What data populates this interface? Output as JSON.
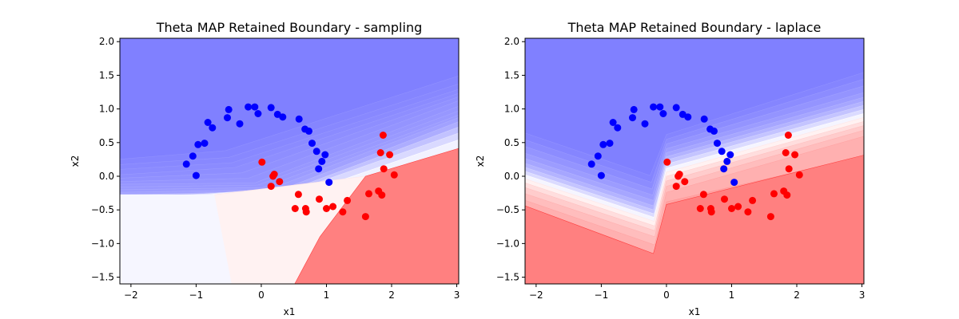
{
  "chart_data": [
    {
      "type": "scatter",
      "title": "Theta MAP Retained Boundary - sampling",
      "xlabel": "x1",
      "ylabel": "x2",
      "xlim": [
        -2.17,
        3.03
      ],
      "ylim": [
        -1.6,
        2.05
      ],
      "xticks": [
        -2,
        -1,
        0,
        1,
        2,
        3
      ],
      "yticks": [
        -1.5,
        -1.0,
        -0.5,
        0.0,
        0.5,
        1.0,
        1.5,
        2.0
      ],
      "xtick_labels": [
        "−2",
        "−1",
        "0",
        "1",
        "2",
        "3"
      ],
      "ytick_labels": [
        "−1.5",
        "−1.0",
        "−0.5",
        "0.0",
        "0.5",
        "1.0",
        "1.5",
        "2.0"
      ],
      "background": "filled contour of class probability (blue = class 0, red = class 1)",
      "contour_bands": [
        {
          "z": 0.02,
          "left": 0.25,
          "mid_x": -0.55,
          "mid_y": 0.38,
          "right": 1.5
        },
        {
          "z": 0.035,
          "left": 0.17,
          "mid_x": -0.5,
          "mid_y": 0.28,
          "right": 1.38
        },
        {
          "z": 0.047,
          "left": 0.1,
          "mid_x": -0.45,
          "mid_y": 0.2,
          "right": 1.3
        },
        {
          "z": 0.058,
          "left": 0.02,
          "mid_x": -0.4,
          "mid_y": 0.13,
          "right": 1.24
        },
        {
          "z": 0.069,
          "left": -0.03,
          "mid_x": -0.3,
          "mid_y": 0.05,
          "right": 1.19
        },
        {
          "z": 0.08,
          "left": -0.08,
          "mid_x": -0.2,
          "mid_y": -0.03,
          "right": 1.13
        },
        {
          "z": 0.092,
          "left": -0.12,
          "mid_x": -0.1,
          "mid_y": -0.1,
          "right": 1.05
        },
        {
          "z": 0.1,
          "left": -0.16,
          "mid_x": -0.05,
          "mid_y": -0.13,
          "right": 0.98
        },
        {
          "z": 0.112,
          "left": -0.2,
          "mid_x": 0.02,
          "mid_y": -0.17,
          "right": 0.92
        },
        {
          "z": 0.13,
          "left": -0.24,
          "mid_x": 0.1,
          "mid_y": -0.2,
          "right": 0.88
        },
        {
          "z": 0.18,
          "left": -0.28,
          "mid_x": 0.25,
          "mid_y": -0.22,
          "right": 0.82
        },
        {
          "z": 0.26,
          "left": -0.32,
          "mid_x": 0.45,
          "mid_y": -0.2,
          "right": 0.74
        },
        {
          "z": 0.35,
          "left": -0.36,
          "mid_x": 0.7,
          "mid_y": -0.15,
          "right": 0.65
        },
        {
          "z": 0.45,
          "left": -0.4,
          "mid_x": 1.1,
          "mid_y": -0.1,
          "right": 0.55
        },
        {
          "z": 0.55,
          "left": -0.45,
          "mid_x": 1.6,
          "mid_y": 0.0,
          "right": 0.4
        }
      ],
      "series": [
        {
          "color": "#0000ff",
          "points": [
            [
              -1.15,
              0.18
            ],
            [
              -1.05,
              0.3
            ],
            [
              -1.0,
              0.01
            ],
            [
              -0.97,
              0.47
            ],
            [
              -0.87,
              0.49
            ],
            [
              -0.82,
              0.8
            ],
            [
              -0.75,
              0.72
            ],
            [
              -0.52,
              0.87
            ],
            [
              -0.5,
              0.99
            ],
            [
              -0.33,
              0.78
            ],
            [
              -0.2,
              1.03
            ],
            [
              -0.1,
              1.03
            ],
            [
              -0.05,
              0.93
            ],
            [
              0.15,
              1.02
            ],
            [
              0.25,
              0.92
            ],
            [
              0.33,
              0.88
            ],
            [
              0.58,
              0.85
            ],
            [
              0.67,
              0.7
            ],
            [
              0.73,
              0.67
            ],
            [
              0.78,
              0.49
            ],
            [
              0.85,
              0.37
            ],
            [
              0.88,
              0.11
            ],
            [
              0.93,
              0.22
            ],
            [
              0.98,
              0.32
            ],
            [
              1.04,
              -0.09
            ]
          ]
        },
        {
          "color": "#ff0000",
          "points": [
            [
              0.01,
              0.21
            ],
            [
              0.15,
              -0.15
            ],
            [
              0.18,
              0.0
            ],
            [
              0.2,
              0.03
            ],
            [
              0.28,
              -0.08
            ],
            [
              0.52,
              -0.48
            ],
            [
              0.57,
              -0.27
            ],
            [
              0.68,
              -0.48
            ],
            [
              0.69,
              -0.53
            ],
            [
              0.89,
              -0.34
            ],
            [
              1.0,
              -0.48
            ],
            [
              1.1,
              -0.45
            ],
            [
              1.25,
              -0.53
            ],
            [
              1.32,
              -0.36
            ],
            [
              1.6,
              -0.6
            ],
            [
              1.65,
              -0.26
            ],
            [
              1.8,
              -0.22
            ],
            [
              1.83,
              0.35
            ],
            [
              1.85,
              -0.28
            ],
            [
              1.87,
              0.61
            ],
            [
              1.88,
              0.11
            ],
            [
              1.97,
              0.32
            ],
            [
              2.04,
              0.02
            ]
          ]
        }
      ]
    },
    {
      "type": "scatter",
      "title": "Theta MAP Retained Boundary - laplace",
      "xlabel": "x1",
      "ylabel": "x2",
      "xlim": [
        -2.17,
        3.03
      ],
      "ylim": [
        -1.6,
        2.05
      ],
      "xticks": [
        -2,
        -1,
        0,
        1,
        2,
        3
      ],
      "yticks": [
        -1.5,
        -1.0,
        -0.5,
        0.0,
        0.5,
        1.0,
        1.5,
        2.0
      ],
      "xtick_labels": [
        "−2",
        "−1",
        "0",
        "1",
        "2",
        "3"
      ],
      "ytick_labels": [
        "−1.5",
        "−1.0",
        "−0.5",
        "0.0",
        "0.5",
        "1.0",
        "1.5",
        "2.0"
      ],
      "background": "filled contour of class probability (blue = class 0, red = class 1)",
      "contour_bands": [
        {
          "z": 0.02,
          "left": 0.65,
          "vx": -0.25,
          "vy": 0.01,
          "kx": 0.0,
          "ky": 0.62,
          "right": 1.55
        },
        {
          "z": 0.05,
          "left": 0.55,
          "vx": -0.23,
          "vy": -0.09,
          "kx": 0.0,
          "ky": 0.55,
          "right": 1.45
        },
        {
          "z": 0.08,
          "left": 0.45,
          "vx": -0.22,
          "vy": -0.19,
          "kx": 0.0,
          "ky": 0.48,
          "right": 1.35
        },
        {
          "z": 0.11,
          "left": 0.35,
          "vx": -0.21,
          "vy": -0.28,
          "kx": 0.0,
          "ky": 0.41,
          "right": 1.25
        },
        {
          "z": 0.15,
          "left": 0.27,
          "vx": -0.2,
          "vy": -0.36,
          "kx": 0.0,
          "ky": 0.35,
          "right": 1.18
        },
        {
          "z": 0.2,
          "left": 0.2,
          "vx": -0.2,
          "vy": -0.44,
          "kx": 0.0,
          "ky": 0.29,
          "right": 1.12
        },
        {
          "z": 0.27,
          "left": 0.14,
          "vx": -0.2,
          "vy": -0.5,
          "kx": 0.0,
          "ky": 0.24,
          "right": 1.06
        },
        {
          "z": 0.36,
          "left": 0.08,
          "vx": -0.19,
          "vy": -0.56,
          "kx": 0.0,
          "ky": 0.18,
          "right": 1.0
        },
        {
          "z": 0.46,
          "left": 0.03,
          "vx": -0.19,
          "vy": -0.61,
          "kx": 0.0,
          "ky": 0.12,
          "right": 0.94
        },
        {
          "z": 0.55,
          "left": -0.03,
          "vx": -0.19,
          "vy": -0.67,
          "kx": 0.0,
          "ky": 0.06,
          "right": 0.88
        },
        {
          "z": 0.63,
          "left": -0.09,
          "vx": -0.18,
          "vy": -0.74,
          "kx": 0.0,
          "ky": 0.0,
          "right": 0.82
        },
        {
          "z": 0.7,
          "left": -0.16,
          "vx": -0.18,
          "vy": -0.81,
          "kx": 0.0,
          "ky": -0.07,
          "right": 0.76
        },
        {
          "z": 0.76,
          "left": -0.25,
          "vx": -0.18,
          "vy": -0.9,
          "kx": 0.0,
          "ky": -0.15,
          "right": 0.69
        },
        {
          "z": 0.81,
          "left": -0.35,
          "vx": -0.18,
          "vy": -1.02,
          "kx": 0.0,
          "ky": -0.24,
          "right": 0.6
        },
        {
          "z": 0.86,
          "left": -0.45,
          "vx": -0.17,
          "vy": -1.17,
          "kx": 0.0,
          "ky": -0.38,
          "right": 0.3
        }
      ],
      "series": [
        {
          "color": "#0000ff",
          "points": [
            [
              -1.15,
              0.18
            ],
            [
              -1.05,
              0.3
            ],
            [
              -1.0,
              0.01
            ],
            [
              -0.97,
              0.47
            ],
            [
              -0.87,
              0.49
            ],
            [
              -0.82,
              0.8
            ],
            [
              -0.75,
              0.72
            ],
            [
              -0.52,
              0.87
            ],
            [
              -0.5,
              0.99
            ],
            [
              -0.33,
              0.78
            ],
            [
              -0.2,
              1.03
            ],
            [
              -0.1,
              1.03
            ],
            [
              -0.05,
              0.93
            ],
            [
              0.15,
              1.02
            ],
            [
              0.25,
              0.92
            ],
            [
              0.33,
              0.88
            ],
            [
              0.58,
              0.85
            ],
            [
              0.67,
              0.7
            ],
            [
              0.73,
              0.67
            ],
            [
              0.78,
              0.49
            ],
            [
              0.85,
              0.37
            ],
            [
              0.88,
              0.11
            ],
            [
              0.93,
              0.22
            ],
            [
              0.98,
              0.32
            ],
            [
              1.04,
              -0.09
            ]
          ]
        },
        {
          "color": "#ff0000",
          "points": [
            [
              0.01,
              0.21
            ],
            [
              0.15,
              -0.15
            ],
            [
              0.18,
              0.0
            ],
            [
              0.2,
              0.03
            ],
            [
              0.28,
              -0.08
            ],
            [
              0.52,
              -0.48
            ],
            [
              0.57,
              -0.27
            ],
            [
              0.68,
              -0.48
            ],
            [
              0.69,
              -0.53
            ],
            [
              0.89,
              -0.34
            ],
            [
              1.0,
              -0.48
            ],
            [
              1.1,
              -0.45
            ],
            [
              1.25,
              -0.53
            ],
            [
              1.32,
              -0.36
            ],
            [
              1.6,
              -0.6
            ],
            [
              1.65,
              -0.26
            ],
            [
              1.8,
              -0.22
            ],
            [
              1.83,
              0.35
            ],
            [
              1.85,
              -0.28
            ],
            [
              1.87,
              0.61
            ],
            [
              1.88,
              0.11
            ],
            [
              1.97,
              0.32
            ],
            [
              2.04,
              0.02
            ]
          ]
        }
      ]
    }
  ],
  "colors": {
    "class0": "#0000ff",
    "class1": "#ff0000",
    "deep_blue_fill": "#8080ff",
    "deep_red_fill": "#ff8080"
  }
}
